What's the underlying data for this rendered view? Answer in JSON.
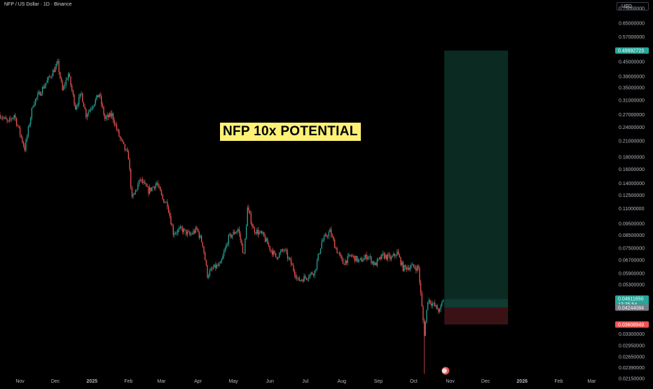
{
  "header": {
    "symbol_title": "NFP / US Dollar · 1D · Binance",
    "currency": "USD"
  },
  "annotation": {
    "headline": "NFP 10x POTENTIAL"
  },
  "colors": {
    "up": "#26a69a",
    "down": "#ef5350",
    "target_zone": "#0b2a22",
    "target_zone_near": "#0f3b32",
    "stop_zone": "#3a1216",
    "axis_text": "#b2b5be",
    "headline_bg": "#fff176"
  },
  "badges": {
    "target": "0.49992723",
    "current": "0.04611650",
    "countdown": "12:25:54",
    "entry": "0.04244084",
    "stop": "0.03608949"
  },
  "chart_data": {
    "type": "candlestick",
    "scale": "log",
    "ylim": [
      0.0215,
      0.78
    ],
    "y_ticks": [
      "0.75000000",
      "0.65000000",
      "0.57000000",
      "0.45000000",
      "0.39000000",
      "0.35000000",
      "0.31000000",
      "0.27000000",
      "0.24000000",
      "0.21000000",
      "0.18000000",
      "0.16000000",
      "0.14000000",
      "0.12500000",
      "0.11000000",
      "0.09500000",
      "0.08500000",
      "0.07500000",
      "0.06700000",
      "0.05900000",
      "0.05300000",
      "0.03300000",
      "0.02950000",
      "0.02650000",
      "0.02390000",
      "0.02150000"
    ],
    "x_ticks": [
      "Nov",
      "Dec",
      "2025",
      "Feb",
      "Mar",
      "Apr",
      "May",
      "Jun",
      "Jul",
      "Aug",
      "Sep",
      "Oct",
      "Nov",
      "Dec",
      "2026",
      "Feb",
      "Mar"
    ],
    "x_range": [
      "2024-10-15",
      "2026-03-15"
    ],
    "price_path": [
      [
        "2024-10-15",
        0.27
      ],
      [
        "2024-10-22",
        0.25
      ],
      [
        "2024-10-27",
        0.27
      ],
      [
        "2024-11-05",
        0.195
      ],
      [
        "2024-11-12",
        0.3
      ],
      [
        "2024-11-22",
        0.36
      ],
      [
        "2024-12-03",
        0.44
      ],
      [
        "2024-12-07",
        0.34
      ],
      [
        "2024-12-12",
        0.4
      ],
      [
        "2024-12-18",
        0.29
      ],
      [
        "2024-12-23",
        0.33
      ],
      [
        "2024-12-27",
        0.27
      ],
      [
        "2025-01-04",
        0.31
      ],
      [
        "2025-01-07",
        0.33
      ],
      [
        "2025-01-12",
        0.26
      ],
      [
        "2025-01-18",
        0.27
      ],
      [
        "2025-01-24",
        0.22
      ],
      [
        "2025-02-01",
        0.18
      ],
      [
        "2025-02-04",
        0.12
      ],
      [
        "2025-02-11",
        0.145
      ],
      [
        "2025-02-18",
        0.13
      ],
      [
        "2025-02-25",
        0.14
      ],
      [
        "2025-03-02",
        0.12
      ],
      [
        "2025-03-06",
        0.115
      ],
      [
        "2025-03-11",
        0.087
      ],
      [
        "2025-03-18",
        0.09
      ],
      [
        "2025-03-25",
        0.085
      ],
      [
        "2025-03-31",
        0.09
      ],
      [
        "2025-04-05",
        0.078
      ],
      [
        "2025-04-09",
        0.058
      ],
      [
        "2025-04-14",
        0.062
      ],
      [
        "2025-04-20",
        0.064
      ],
      [
        "2025-04-27",
        0.083
      ],
      [
        "2025-05-05",
        0.09
      ],
      [
        "2025-05-10",
        0.07
      ],
      [
        "2025-05-13",
        0.11
      ],
      [
        "2025-05-18",
        0.09
      ],
      [
        "2025-05-26",
        0.085
      ],
      [
        "2025-06-01",
        0.075
      ],
      [
        "2025-06-06",
        0.069
      ],
      [
        "2025-06-13",
        0.074
      ],
      [
        "2025-06-20",
        0.063
      ],
      [
        "2025-06-25",
        0.055
      ],
      [
        "2025-07-02",
        0.057
      ],
      [
        "2025-07-09",
        0.06
      ],
      [
        "2025-07-15",
        0.08
      ],
      [
        "2025-07-22",
        0.088
      ],
      [
        "2025-07-27",
        0.075
      ],
      [
        "2025-08-02",
        0.065
      ],
      [
        "2025-08-09",
        0.07
      ],
      [
        "2025-08-16",
        0.066
      ],
      [
        "2025-08-23",
        0.07
      ],
      [
        "2025-08-29",
        0.064
      ],
      [
        "2025-09-05",
        0.07
      ],
      [
        "2025-09-12",
        0.068
      ],
      [
        "2025-09-17",
        0.072
      ],
      [
        "2025-09-22",
        0.062
      ],
      [
        "2025-09-29",
        0.063
      ],
      [
        "2025-10-05",
        0.062
      ],
      [
        "2025-10-10",
        0.033
      ],
      [
        "2025-10-13",
        0.046
      ],
      [
        "2025-10-19",
        0.043
      ],
      [
        "2025-10-23",
        0.041
      ],
      [
        "2025-10-26",
        0.0461
      ]
    ],
    "position": {
      "start": "2025-10-27",
      "end": "2025-12-20",
      "target": 0.49992723,
      "entry": 0.04244084,
      "stop": 0.03608949
    },
    "legend": "none",
    "grid": false
  }
}
